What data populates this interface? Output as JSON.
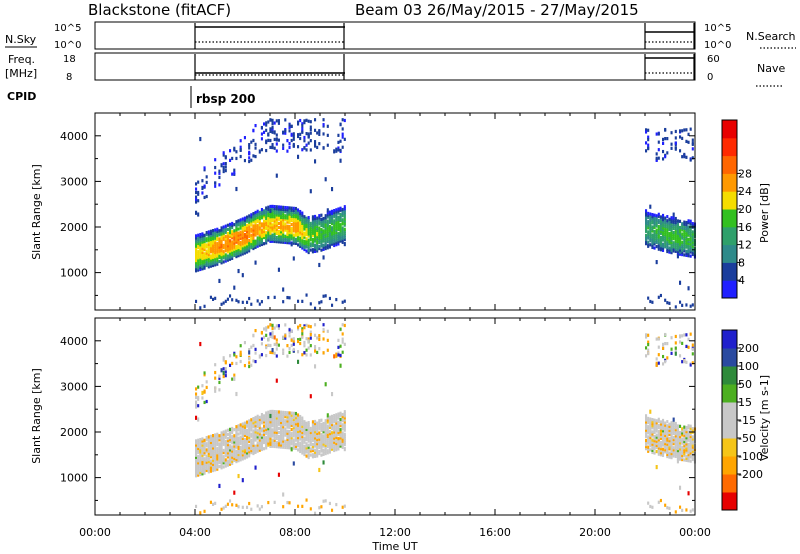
{
  "header": {
    "station": "Blackstone (fitACF)",
    "beam_date": "Beam 03 26/May/2015 - 27/May/2015"
  },
  "summary": {
    "nsky_label": "N.Sky",
    "nsky_ticks": [
      "10^5",
      "10^0"
    ],
    "nsearch_label": "N.Search",
    "nsearch_ticks": [
      "10^5",
      "10^0"
    ],
    "freq_label": "Freq.",
    "freq_unit": "[MHz]",
    "freq_ticks": [
      "18",
      "8"
    ],
    "nave_label": "Nave",
    "nave_ticks": [
      "60",
      "0"
    ],
    "cpid_label": "CPID",
    "cpid_value": "rbsp 200"
  },
  "colors": {
    "power": [
      "#2020ff",
      "#1a3d9c",
      "#2e8a8a",
      "#2fa06b",
      "#33c020",
      "#f5dd00",
      "#ff9900",
      "#ff6600",
      "#ff2a00",
      "#e80000"
    ],
    "velocity": [
      "#e60000",
      "#ff6a00",
      "#ffa500",
      "#f5c518",
      "#c8c8c8",
      "#c8c8c8",
      "#4caf20",
      "#2e8a3a",
      "#2a4aa0",
      "#2020cc"
    ]
  },
  "chart_data": [
    {
      "type": "heatmap",
      "title": "Power",
      "xlabel": "Time UT",
      "ylabel": "Slant Range [km]",
      "xlim": [
        "00:00",
        "24:00"
      ],
      "x_ticks": [
        "00:00",
        "04:00",
        "08:00",
        "12:00",
        "16:00",
        "20:00",
        "00:00"
      ],
      "y_ticks": [
        1000,
        2000,
        3000,
        4000
      ],
      "ylim": [
        180,
        4500
      ],
      "colorbar_label": "Power [dB]",
      "colorbar_ticks": [
        4,
        8,
        12,
        16,
        20,
        24,
        28
      ],
      "data_windows": [
        [
          "04:00",
          "10:00"
        ],
        [
          "22:00",
          "24:00"
        ]
      ],
      "main_echo_band": {
        "x_hours": [
          4.0,
          5.0,
          6.0,
          6.5,
          7.0,
          8.0,
          8.5,
          9.0,
          10.0,
          22.0,
          23.0,
          24.0
        ],
        "range_km": [
          1450,
          1620,
          1850,
          2000,
          2100,
          2050,
          1850,
          1900,
          2100,
          2000,
          1850,
          1750
        ],
        "peak_power_db": [
          22,
          28,
          28,
          26,
          24,
          26,
          20,
          18,
          16,
          14,
          18,
          16
        ]
      }
    },
    {
      "type": "heatmap",
      "title": "Velocity",
      "xlabel": "Time UT",
      "ylabel": "Slant Range [km]",
      "xlim": [
        "00:00",
        "24:00"
      ],
      "x_ticks": [
        "00:00",
        "04:00",
        "08:00",
        "12:00",
        "16:00",
        "20:00",
        "00:00"
      ],
      "y_ticks": [
        1000,
        2000,
        3000,
        4000
      ],
      "ylim": [
        180,
        4500
      ],
      "colorbar_label": "Velocity [m s-1]",
      "colorbar_ticks": [
        200,
        100,
        50,
        15,
        -15,
        -50,
        -100,
        -200
      ],
      "data_windows": [
        [
          "04:00",
          "10:00"
        ],
        [
          "22:00",
          "24:00"
        ]
      ]
    }
  ]
}
